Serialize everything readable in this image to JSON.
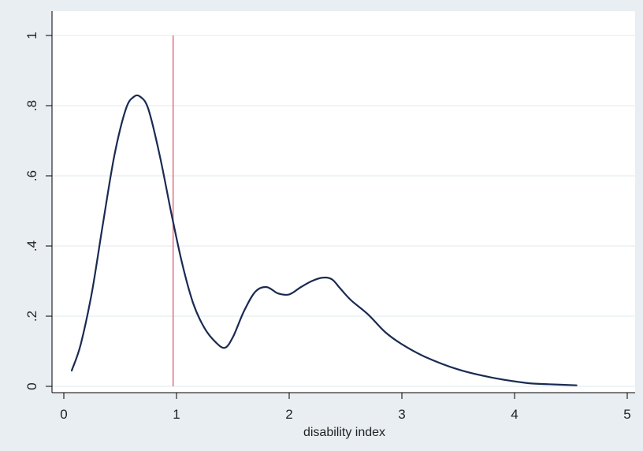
{
  "chart_data": {
    "type": "line",
    "title": "",
    "xlabel": "disability index",
    "ylabel": "",
    "xlim": [
      0,
      5
    ],
    "ylim": [
      0,
      1
    ],
    "x_ticks": [
      0,
      1,
      2,
      3,
      4,
      5
    ],
    "x_tick_labels": [
      "0",
      "1",
      "2",
      "3",
      "4",
      "5"
    ],
    "y_ticks": [
      0,
      0.2,
      0.4,
      0.6,
      0.8,
      1
    ],
    "y_tick_labels": [
      "0",
      ".2",
      ".4",
      ".6",
      ".8",
      "1"
    ],
    "grid": true,
    "legend": "none",
    "series": [
      {
        "x": [
          0.07,
          0.15,
          0.25,
          0.35,
          0.45,
          0.55,
          0.62,
          0.68,
          0.75,
          0.85,
          0.95,
          1.05,
          1.15,
          1.25,
          1.35,
          1.43,
          1.5,
          1.6,
          1.7,
          1.8,
          1.9,
          2.0,
          2.1,
          2.2,
          2.3,
          2.38,
          2.45,
          2.55,
          2.7,
          2.85,
          3.0,
          3.2,
          3.5,
          3.8,
          4.1,
          4.3,
          4.55
        ],
        "y": [
          0.045,
          0.12,
          0.27,
          0.47,
          0.66,
          0.79,
          0.825,
          0.825,
          0.79,
          0.66,
          0.5,
          0.35,
          0.235,
          0.165,
          0.125,
          0.11,
          0.14,
          0.215,
          0.27,
          0.283,
          0.265,
          0.262,
          0.282,
          0.3,
          0.31,
          0.305,
          0.28,
          0.245,
          0.205,
          0.155,
          0.12,
          0.085,
          0.048,
          0.025,
          0.01,
          0.006,
          0.003
        ]
      }
    ],
    "vlines": [
      0.97
    ],
    "colors": {
      "background": "#e9eef2",
      "plot_background": "#ffffff",
      "line": "#1a2a52",
      "vline": "#e07a84",
      "grid": "#e2e8ee"
    }
  }
}
